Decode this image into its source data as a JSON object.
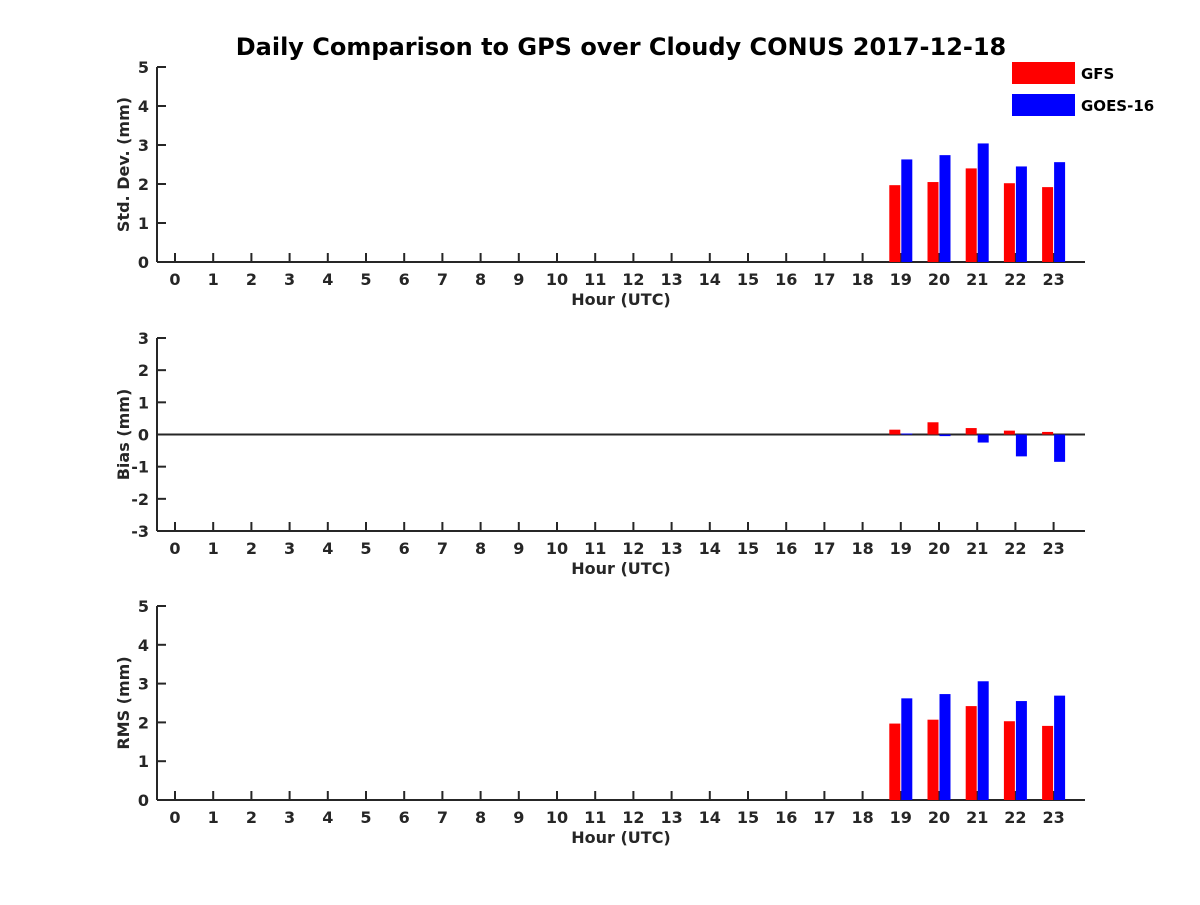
{
  "title": "Daily Comparison to GPS over Cloudy CONUS 2017-12-18",
  "legend": [
    {
      "name": "GFS",
      "color": "#ff0000"
    },
    {
      "name": "GOES-16",
      "color": "#0000ff"
    }
  ],
  "chart_data": [
    {
      "type": "bar",
      "title": "Daily Comparison to GPS over Cloudy CONUS 2017-12-18",
      "xlabel": "Hour (UTC)",
      "ylabel": "Std. Dev. (mm)",
      "categories": [
        "0",
        "1",
        "2",
        "3",
        "4",
        "5",
        "6",
        "7",
        "8",
        "9",
        "10",
        "11",
        "12",
        "13",
        "14",
        "15",
        "16",
        "17",
        "18",
        "19",
        "20",
        "21",
        "22",
        "23"
      ],
      "ylim": [
        0,
        5
      ],
      "yticks": [
        "0",
        "1",
        "2",
        "3",
        "4",
        "5"
      ],
      "legend_position": "top-right",
      "grid": false,
      "series": [
        {
          "name": "GFS",
          "color": "#ff0000",
          "values": [
            null,
            null,
            null,
            null,
            null,
            null,
            null,
            null,
            null,
            null,
            null,
            null,
            null,
            null,
            null,
            null,
            null,
            null,
            null,
            1.97,
            2.05,
            2.4,
            2.02,
            1.92
          ]
        },
        {
          "name": "GOES-16",
          "color": "#0000ff",
          "values": [
            null,
            null,
            null,
            null,
            null,
            null,
            null,
            null,
            null,
            null,
            null,
            null,
            null,
            null,
            null,
            null,
            null,
            null,
            null,
            2.63,
            2.74,
            3.04,
            2.45,
            2.56
          ]
        }
      ]
    },
    {
      "type": "bar",
      "xlabel": "Hour (UTC)",
      "ylabel": "Bias (mm)",
      "categories": [
        "0",
        "1",
        "2",
        "3",
        "4",
        "5",
        "6",
        "7",
        "8",
        "9",
        "10",
        "11",
        "12",
        "13",
        "14",
        "15",
        "16",
        "17",
        "18",
        "19",
        "20",
        "21",
        "22",
        "23"
      ],
      "ylim": [
        -3,
        3
      ],
      "yticks": [
        "-3",
        "-2",
        "-1",
        "0",
        "1",
        "2",
        "3"
      ],
      "zero_line": true,
      "grid": false,
      "series": [
        {
          "name": "GFS",
          "color": "#ff0000",
          "values": [
            null,
            null,
            null,
            null,
            null,
            null,
            null,
            null,
            null,
            null,
            null,
            null,
            null,
            null,
            null,
            null,
            null,
            null,
            null,
            0.15,
            0.38,
            0.2,
            0.12,
            0.08
          ]
        },
        {
          "name": "GOES-16",
          "color": "#0000ff",
          "values": [
            null,
            null,
            null,
            null,
            null,
            null,
            null,
            null,
            null,
            null,
            null,
            null,
            null,
            null,
            null,
            null,
            null,
            null,
            null,
            0.03,
            -0.05,
            -0.25,
            -0.68,
            -0.85
          ]
        }
      ]
    },
    {
      "type": "bar",
      "xlabel": "Hour (UTC)",
      "ylabel": "RMS (mm)",
      "categories": [
        "0",
        "1",
        "2",
        "3",
        "4",
        "5",
        "6",
        "7",
        "8",
        "9",
        "10",
        "11",
        "12",
        "13",
        "14",
        "15",
        "16",
        "17",
        "18",
        "19",
        "20",
        "21",
        "22",
        "23"
      ],
      "ylim": [
        0,
        5
      ],
      "yticks": [
        "0",
        "1",
        "2",
        "3",
        "4",
        "5"
      ],
      "grid": false,
      "series": [
        {
          "name": "GFS",
          "color": "#ff0000",
          "values": [
            null,
            null,
            null,
            null,
            null,
            null,
            null,
            null,
            null,
            null,
            null,
            null,
            null,
            null,
            null,
            null,
            null,
            null,
            null,
            1.97,
            2.07,
            2.42,
            2.03,
            1.91
          ]
        },
        {
          "name": "GOES-16",
          "color": "#0000ff",
          "values": [
            null,
            null,
            null,
            null,
            null,
            null,
            null,
            null,
            null,
            null,
            null,
            null,
            null,
            null,
            null,
            null,
            null,
            null,
            null,
            2.62,
            2.73,
            3.06,
            2.55,
            2.69
          ]
        }
      ]
    }
  ]
}
